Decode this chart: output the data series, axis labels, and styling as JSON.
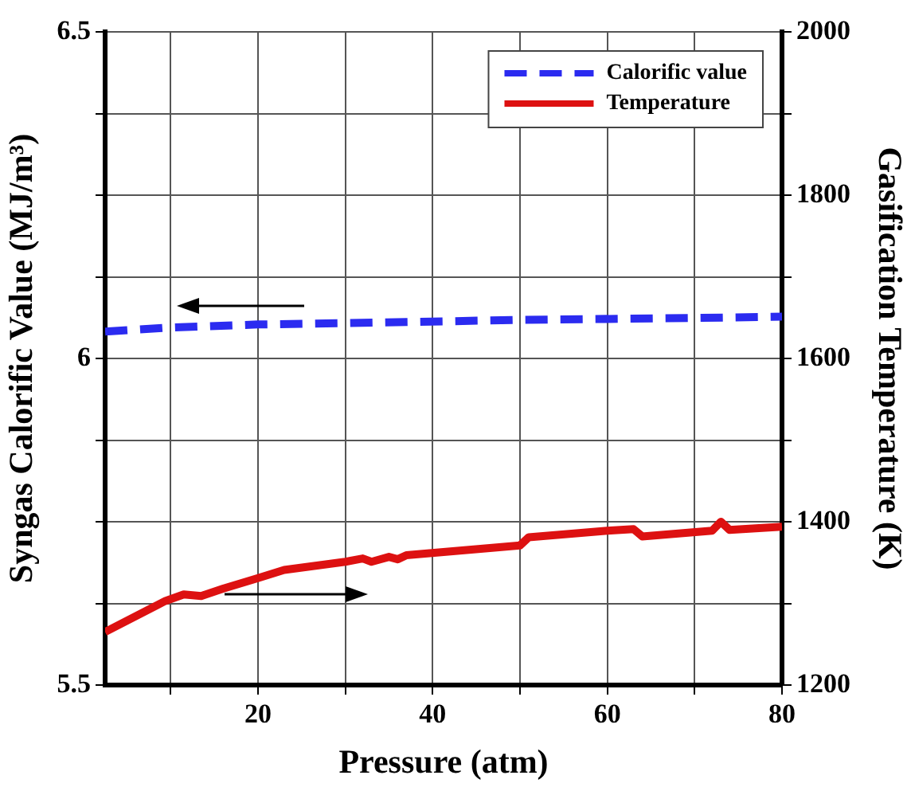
{
  "chart_data": {
    "type": "line",
    "xlabel": "Pressure (atm)",
    "ylabel": "Syngas Calorific Value (MJ/m³)",
    "y2label": "Gasification Temperature (K)",
    "xlim": [
      2.5,
      80
    ],
    "xticks": [
      {
        "value": 10,
        "label": null
      },
      20,
      {
        "value": 30,
        "label": null
      },
      40,
      {
        "value": 50,
        "label": null
      },
      60,
      {
        "value": 70,
        "label": null
      },
      80
    ],
    "ylim": [
      5.5,
      6.5
    ],
    "yticks": [
      5.5,
      {
        "value": 5.625,
        "label": null
      },
      {
        "value": 5.75,
        "label": null
      },
      {
        "value": 5.875,
        "label": null
      },
      6,
      {
        "value": 6.125,
        "label": null
      },
      {
        "value": 6.25,
        "label": null
      },
      {
        "value": 6.375,
        "label": null
      },
      6.5
    ],
    "y2lim": [
      1200,
      2000
    ],
    "y2ticks": [
      1200,
      {
        "value": 1300,
        "label": null
      },
      1400,
      {
        "value": 1500,
        "label": null
      },
      1600,
      {
        "value": 1700,
        "label": null
      },
      1800,
      {
        "value": 1900,
        "label": null
      },
      2000
    ],
    "grid": true,
    "legend": "top right",
    "marker": "none",
    "series": [
      {
        "name": "Calorific value",
        "color": "#2b2bf0",
        "line_style": "dashed",
        "x": [
          2.5,
          9.4,
          20,
          30,
          50,
          70,
          80
        ],
        "values": [
          6.041,
          6.047,
          6.052,
          6.054,
          6.059,
          6.062,
          6.064
        ]
      },
      {
        "name": "Temperature",
        "color": "#dd1111",
        "line_style": "solid",
        "axis": "y2",
        "x": [
          2.5,
          9.4,
          11.5,
          13.5,
          16,
          20,
          23,
          30,
          32,
          33,
          35,
          36,
          37,
          50,
          51,
          60,
          63,
          64,
          72,
          73,
          74,
          80
        ],
        "values": [
          1265,
          1303,
          1311,
          1309,
          1318,
          1331,
          1341,
          1351,
          1355,
          1351,
          1357,
          1354,
          1359,
          1371,
          1381,
          1389,
          1391,
          1382,
          1389,
          1400,
          1390,
          1394
        ]
      }
    ]
  }
}
